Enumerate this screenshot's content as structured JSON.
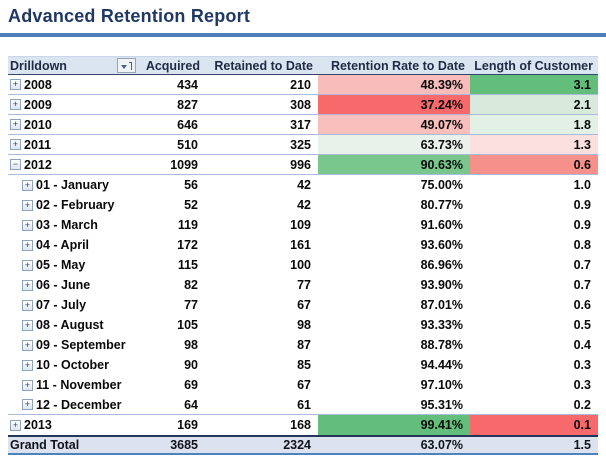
{
  "title": "Advanced Retention Report",
  "theme": {
    "title_color": "#1F3864",
    "rule_color": "#4D7EBA",
    "header_bg": "#DBE5F1",
    "grand_total_bg": "#DCE3EF",
    "row_separator": "#A9BBD8",
    "scale_red": "#F8696B",
    "scale_green": "#63BE7B"
  },
  "table": {
    "columns": [
      "Drilldown",
      "Acquired",
      "Retained to Date",
      "Retention Rate to Date",
      "Length of Customer"
    ],
    "filter_icon": "sort-filter-icon",
    "rows": [
      {
        "label": "2008",
        "level": 0,
        "toggle": "+",
        "acquired": "434",
        "retained": "210",
        "rate": "48.39%",
        "length": "3.1",
        "rate_bg": "#F8BDBB",
        "length_bg": "#63BE7B",
        "sep": true
      },
      {
        "label": "2009",
        "level": 0,
        "toggle": "+",
        "acquired": "827",
        "retained": "308",
        "rate": "37.24%",
        "length": "2.1",
        "rate_bg": "#F8696B",
        "length_bg": "#D8EADC",
        "sep": true
      },
      {
        "label": "2010",
        "level": 0,
        "toggle": "+",
        "acquired": "646",
        "retained": "317",
        "rate": "49.07%",
        "length": "1.8",
        "rate_bg": "#F9BFBD",
        "length_bg": "#E3F0E6",
        "sep": true
      },
      {
        "label": "2011",
        "level": 0,
        "toggle": "+",
        "acquired": "510",
        "retained": "325",
        "rate": "63.73%",
        "length": "1.3",
        "rate_bg": "#E8F2EB",
        "length_bg": "#FBE0DF",
        "sep": true
      },
      {
        "label": "2012",
        "level": 0,
        "toggle": "−",
        "acquired": "1099",
        "retained": "996",
        "rate": "90.63%",
        "length": "0.6",
        "rate_bg": "#79C78D",
        "length_bg": "#F5908B",
        "sep": true
      },
      {
        "label": "01 - January",
        "level": 1,
        "toggle": "+",
        "acquired": "56",
        "retained": "42",
        "rate": "75.00%",
        "length": "1.0",
        "rate_bg": "#FFFFFF",
        "length_bg": "#FFFFFF",
        "sep": false
      },
      {
        "label": "02 - February",
        "level": 1,
        "toggle": "+",
        "acquired": "52",
        "retained": "42",
        "rate": "80.77%",
        "length": "0.9",
        "rate_bg": "#FFFFFF",
        "length_bg": "#FFFFFF",
        "sep": false
      },
      {
        "label": "03 - March",
        "level": 1,
        "toggle": "+",
        "acquired": "119",
        "retained": "109",
        "rate": "91.60%",
        "length": "0.9",
        "rate_bg": "#FFFFFF",
        "length_bg": "#FFFFFF",
        "sep": false
      },
      {
        "label": "04 - April",
        "level": 1,
        "toggle": "+",
        "acquired": "172",
        "retained": "161",
        "rate": "93.60%",
        "length": "0.8",
        "rate_bg": "#FFFFFF",
        "length_bg": "#FFFFFF",
        "sep": false
      },
      {
        "label": "05 - May",
        "level": 1,
        "toggle": "+",
        "acquired": "115",
        "retained": "100",
        "rate": "86.96%",
        "length": "0.7",
        "rate_bg": "#FFFFFF",
        "length_bg": "#FFFFFF",
        "sep": false
      },
      {
        "label": "06 - June",
        "level": 1,
        "toggle": "+",
        "acquired": "82",
        "retained": "77",
        "rate": "93.90%",
        "length": "0.7",
        "rate_bg": "#FFFFFF",
        "length_bg": "#FFFFFF",
        "sep": false
      },
      {
        "label": "07 - July",
        "level": 1,
        "toggle": "+",
        "acquired": "77",
        "retained": "67",
        "rate": "87.01%",
        "length": "0.6",
        "rate_bg": "#FFFFFF",
        "length_bg": "#FFFFFF",
        "sep": false
      },
      {
        "label": "08 - August",
        "level": 1,
        "toggle": "+",
        "acquired": "105",
        "retained": "98",
        "rate": "93.33%",
        "length": "0.5",
        "rate_bg": "#FFFFFF",
        "length_bg": "#FFFFFF",
        "sep": false
      },
      {
        "label": "09 - September",
        "level": 1,
        "toggle": "+",
        "acquired": "98",
        "retained": "87",
        "rate": "88.78%",
        "length": "0.4",
        "rate_bg": "#FFFFFF",
        "length_bg": "#FFFFFF",
        "sep": false
      },
      {
        "label": "10 - October",
        "level": 1,
        "toggle": "+",
        "acquired": "90",
        "retained": "85",
        "rate": "94.44%",
        "length": "0.3",
        "rate_bg": "#FFFFFF",
        "length_bg": "#FFFFFF",
        "sep": false
      },
      {
        "label": "11 - November",
        "level": 1,
        "toggle": "+",
        "acquired": "69",
        "retained": "67",
        "rate": "97.10%",
        "length": "0.3",
        "rate_bg": "#FFFFFF",
        "length_bg": "#FFFFFF",
        "sep": false
      },
      {
        "label": "12 - December",
        "level": 1,
        "toggle": "+",
        "acquired": "64",
        "retained": "61",
        "rate": "95.31%",
        "length": "0.2",
        "rate_bg": "#FFFFFF",
        "length_bg": "#FFFFFF",
        "sep": true
      },
      {
        "label": "2013",
        "level": 0,
        "toggle": "+",
        "acquired": "169",
        "retained": "168",
        "rate": "99.41%",
        "length": "0.1",
        "rate_bg": "#63BE7B",
        "length_bg": "#F8696B",
        "sep": false
      }
    ],
    "grand_total": {
      "label": "Grand Total",
      "acquired": "3685",
      "retained": "2324",
      "rate": "63.07%",
      "length": "1.5"
    }
  }
}
